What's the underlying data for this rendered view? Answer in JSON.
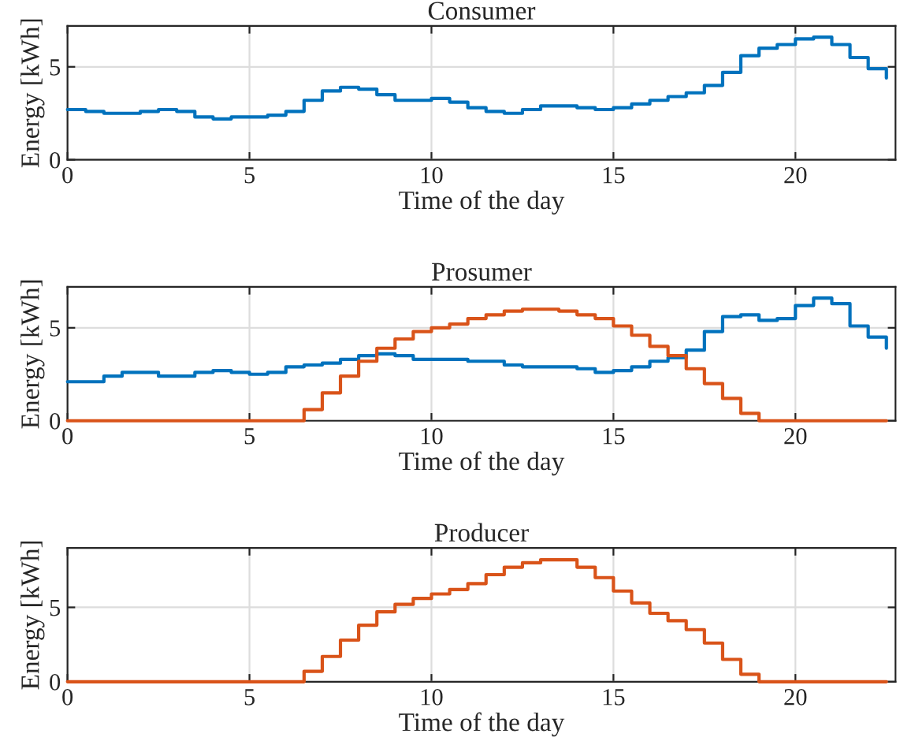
{
  "chart_data": [
    {
      "type": "step",
      "title": "Consumer",
      "xlabel": "Time of the day",
      "ylabel": "Energy [kWh]",
      "xlim": [
        0,
        22.75
      ],
      "xticks": [
        0,
        5,
        10,
        15,
        20
      ],
      "ylim": [
        0,
        7.2
      ],
      "yticks": [
        0,
        5
      ],
      "grid": true,
      "legend": false,
      "x": [
        0,
        0.5,
        1,
        1.5,
        2,
        2.5,
        3,
        3.5,
        4,
        4.5,
        5,
        5.5,
        6,
        6.5,
        7,
        7.5,
        8,
        8.5,
        9,
        9.5,
        10,
        10.5,
        11,
        11.5,
        12,
        12.5,
        13,
        13.5,
        14,
        14.5,
        15,
        15.5,
        16,
        16.5,
        17,
        17.5,
        18,
        18.5,
        19,
        19.5,
        20,
        20.5,
        21,
        21.5,
        22,
        22.5
      ],
      "series": [
        {
          "color": "#0072bd",
          "values": [
            2.7,
            2.6,
            2.5,
            2.5,
            2.6,
            2.7,
            2.6,
            2.3,
            2.2,
            2.3,
            2.3,
            2.4,
            2.6,
            3.2,
            3.7,
            3.9,
            3.8,
            3.5,
            3.2,
            3.2,
            3.3,
            3.1,
            2.8,
            2.6,
            2.5,
            2.7,
            2.9,
            2.9,
            2.8,
            2.7,
            2.8,
            3.0,
            3.2,
            3.4,
            3.6,
            4.0,
            4.7,
            5.6,
            6.0,
            6.2,
            6.5,
            6.6,
            6.2,
            5.5,
            4.9,
            4.4
          ]
        }
      ]
    },
    {
      "type": "step",
      "title": "Prosumer",
      "xlabel": "Time of the day",
      "ylabel": "Energy [kWh]",
      "xlim": [
        0,
        22.75
      ],
      "xticks": [
        0,
        5,
        10,
        15,
        20
      ],
      "ylim": [
        0,
        7.2
      ],
      "yticks": [
        0,
        5
      ],
      "grid": true,
      "legend": false,
      "x": [
        0,
        0.5,
        1,
        1.5,
        2,
        2.5,
        3,
        3.5,
        4,
        4.5,
        5,
        5.5,
        6,
        6.5,
        7,
        7.5,
        8,
        8.5,
        9,
        9.5,
        10,
        10.5,
        11,
        11.5,
        12,
        12.5,
        13,
        13.5,
        14,
        14.5,
        15,
        15.5,
        16,
        16.5,
        17,
        17.5,
        18,
        18.5,
        19,
        19.5,
        20,
        20.5,
        21,
        21.5,
        22,
        22.5
      ],
      "series": [
        {
          "color": "#0072bd",
          "values": [
            2.1,
            2.1,
            2.4,
            2.6,
            2.6,
            2.4,
            2.4,
            2.6,
            2.7,
            2.6,
            2.5,
            2.6,
            2.9,
            3.0,
            3.1,
            3.3,
            3.5,
            3.6,
            3.5,
            3.3,
            3.3,
            3.3,
            3.2,
            3.2,
            3.0,
            2.9,
            2.9,
            2.9,
            2.8,
            2.6,
            2.7,
            2.9,
            3.2,
            3.4,
            3.8,
            4.8,
            5.6,
            5.7,
            5.4,
            5.5,
            6.2,
            6.6,
            6.3,
            5.1,
            4.5,
            3.9
          ]
        },
        {
          "color": "#d95319",
          "values": [
            0,
            0,
            0,
            0,
            0,
            0,
            0,
            0,
            0,
            0,
            0,
            0,
            0,
            0.6,
            1.5,
            2.4,
            3.2,
            3.9,
            4.4,
            4.8,
            5.0,
            5.2,
            5.5,
            5.7,
            5.9,
            6.0,
            6.0,
            5.9,
            5.7,
            5.5,
            5.1,
            4.6,
            4.0,
            3.5,
            2.8,
            2.0,
            1.2,
            0.4,
            0,
            0,
            0,
            0,
            0,
            0,
            0,
            0
          ]
        }
      ]
    },
    {
      "type": "step",
      "title": "Producer",
      "xlabel": "Time of the day",
      "ylabel": "Energy [kWh]",
      "xlim": [
        0,
        22.75
      ],
      "xticks": [
        0,
        5,
        10,
        15,
        20
      ],
      "ylim": [
        0,
        9
      ],
      "yticks": [
        0,
        5
      ],
      "grid": true,
      "legend": false,
      "x": [
        0,
        0.5,
        1,
        1.5,
        2,
        2.5,
        3,
        3.5,
        4,
        4.5,
        5,
        5.5,
        6,
        6.5,
        7,
        7.5,
        8,
        8.5,
        9,
        9.5,
        10,
        10.5,
        11,
        11.5,
        12,
        12.5,
        13,
        13.5,
        14,
        14.5,
        15,
        15.5,
        16,
        16.5,
        17,
        17.5,
        18,
        18.5,
        19,
        19.5,
        20,
        20.5,
        21,
        21.5,
        22,
        22.5
      ],
      "series": [
        {
          "color": "#d95319",
          "values": [
            0,
            0,
            0,
            0,
            0,
            0,
            0,
            0,
            0,
            0,
            0,
            0,
            0,
            0.7,
            1.7,
            2.8,
            3.8,
            4.7,
            5.2,
            5.6,
            5.9,
            6.2,
            6.6,
            7.2,
            7.7,
            8.0,
            8.2,
            8.2,
            7.7,
            7.0,
            6.1,
            5.3,
            4.6,
            4.1,
            3.5,
            2.6,
            1.5,
            0.5,
            0,
            0,
            0,
            0,
            0,
            0,
            0,
            0
          ]
        }
      ]
    }
  ]
}
